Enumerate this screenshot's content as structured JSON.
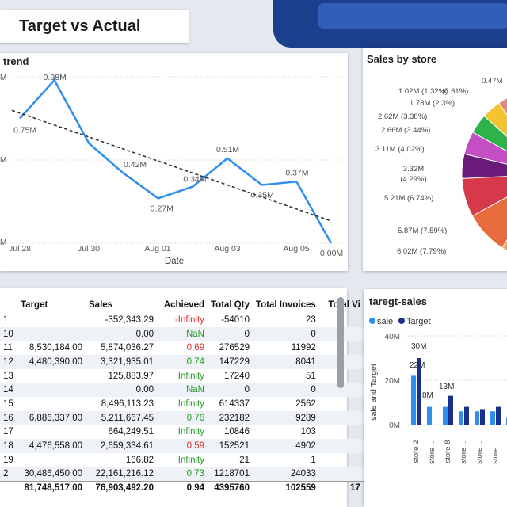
{
  "header": {
    "title": "Target vs Actual",
    "more_label": "•••"
  },
  "trend": {
    "title": "trend",
    "xlabel": "Date",
    "colors": {
      "line": "#2f8ff0",
      "trendline": "#333333"
    }
  },
  "pie": {
    "title": "Sales by store"
  },
  "bars": {
    "title": "taregt-sales",
    "ylabel": "sale and Target"
  },
  "table": {
    "columns": [
      "Target",
      "Sales",
      "Achieved",
      "Total Qty",
      "Total Invoices",
      "Total Vi"
    ],
    "rows": [
      {
        "id": "1",
        "target": "",
        "sales": "-352,343.29",
        "achieved": "-Infinity",
        "qty": "-54010",
        "inv": "23",
        "status": "neg"
      },
      {
        "id": "10",
        "target": "",
        "sales": "0.00",
        "achieved": "NaN",
        "qty": "0",
        "inv": "0",
        "status": "pos"
      },
      {
        "id": "11",
        "target": "8,530,184.00",
        "sales": "5,874,036.27",
        "achieved": "0.69",
        "qty": "276529",
        "inv": "11992",
        "status": "neg"
      },
      {
        "id": "12",
        "target": "4,480,390.00",
        "sales": "3,321,935.01",
        "achieved": "0.74",
        "qty": "147229",
        "inv": "8041",
        "status": "pos"
      },
      {
        "id": "13",
        "target": "",
        "sales": "125,883.97",
        "achieved": "Infinity",
        "qty": "17240",
        "inv": "51",
        "status": "pos"
      },
      {
        "id": "14",
        "target": "",
        "sales": "0.00",
        "achieved": "NaN",
        "qty": "0",
        "inv": "0",
        "status": "pos"
      },
      {
        "id": "15",
        "target": "",
        "sales": "8,496,113.23",
        "achieved": "Infinity",
        "qty": "614337",
        "inv": "2562",
        "status": "pos"
      },
      {
        "id": "16",
        "target": "6,886,337.00",
        "sales": "5,211,667.45",
        "achieved": "0.76",
        "qty": "232182",
        "inv": "9289",
        "status": "pos"
      },
      {
        "id": "17",
        "target": "",
        "sales": "664,249.51",
        "achieved": "Infinity",
        "qty": "10846",
        "inv": "103",
        "status": "pos"
      },
      {
        "id": "18",
        "target": "4,476,558.00",
        "sales": "2,659,334.61",
        "achieved": "0.59",
        "qty": "152521",
        "inv": "4902",
        "status": "neg"
      },
      {
        "id": "19",
        "target": "",
        "sales": "166.82",
        "achieved": "Infinity",
        "qty": "21",
        "inv": "1",
        "status": "pos"
      },
      {
        "id": "2",
        "target": "30,486,450.00",
        "sales": "22,161,216.12",
        "achieved": "0.73",
        "qty": "1218701",
        "inv": "24033",
        "status": "pos"
      }
    ],
    "total": {
      "target": "81,748,517.00",
      "sales": "76,903,492.20",
      "achieved": "0.94",
      "qty": "4395760",
      "inv": "102559",
      "vi": "17"
    }
  },
  "chart_data": [
    {
      "type": "line",
      "title": "trend",
      "xlabel": "Date",
      "x_ticks": [
        "Jul 28",
        "Jul 30",
        "Aug 01",
        "Aug 03",
        "Aug 05"
      ],
      "series": [
        {
          "values": [
            0.75,
            0.98,
            0.6,
            0.42,
            0.27,
            0.34,
            0.51,
            0.35,
            0.37,
            0.0
          ]
        }
      ],
      "labels": [
        "0.75M",
        "0.98M",
        "",
        "0.42M",
        "0.27M",
        "0.34M",
        "0.51M",
        "0.35M",
        "0.37M",
        "0.00M"
      ],
      "trendline": true
    },
    {
      "type": "pie",
      "title": "Sales by store",
      "slices": [
        {
          "label": "6.02M (7.79%)",
          "value": 7.79,
          "color": "#f4a15a"
        },
        {
          "label": "5.87M (7.59%)",
          "value": 7.59,
          "color": "#e76b3c"
        },
        {
          "label": "5.21M (6.74%)",
          "value": 6.74,
          "color": "#d63a4a"
        },
        {
          "label": "3.32M (4.29%)",
          "value": 4.29,
          "color": "#6a1b7a"
        },
        {
          "label": "3.11M (4.02%)",
          "value": 4.02,
          "color": "#c44fc4"
        },
        {
          "label": "2.66M (3.44%)",
          "value": 3.44,
          "color": "#2db34a"
        },
        {
          "label": "2.62M (3.38%)",
          "value": 3.38,
          "color": "#f4c430"
        },
        {
          "label": "1.78M (2.3%)",
          "value": 2.3,
          "color": "#e08b7b"
        },
        {
          "label": "1.02M (1.32%)",
          "value": 1.32,
          "color": "#3e9ee8"
        },
        {
          "label": "(0.61%)",
          "value": 0.61,
          "color": "#8a3ab8"
        },
        {
          "label": "0.47M",
          "value": 0.61,
          "color": "#e0457a"
        }
      ]
    },
    {
      "type": "bar",
      "title": "taregt-sales",
      "ylabel": "sale and Target",
      "y_ticks": [
        "40M",
        "20M",
        "0M"
      ],
      "legend": [
        "sale",
        "Target"
      ],
      "categories": [
        "store 2",
        "store ...",
        "store 8",
        "store ...",
        "store ...",
        "store ...",
        "store ...",
        "store ..."
      ],
      "series": [
        {
          "name": "sale",
          "values": [
            22,
            8,
            8,
            6,
            6,
            6,
            3,
            3
          ],
          "color": "#2f8ff0"
        },
        {
          "name": "Target",
          "values": [
            30,
            0,
            13,
            8,
            7,
            8,
            4,
            5
          ],
          "color": "#1a2f8a"
        }
      ],
      "data_labels": [
        "30M",
        "22M",
        "8M",
        "13M"
      ]
    }
  ]
}
